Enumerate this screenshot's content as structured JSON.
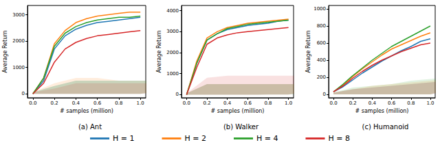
{
  "chart_data": [
    {
      "type": "line",
      "title": "(a) Ant",
      "xlabel": "# samples (million)",
      "ylabel": "Average Return",
      "x": [
        0,
        0.1,
        0.2,
        0.3,
        0.4,
        0.5,
        0.6,
        0.7,
        0.8,
        0.9,
        1.0
      ],
      "xlim": [
        -0.05,
        1.05
      ],
      "xticks": [
        {
          "value": 0,
          "label": "0.0"
        },
        0.2,
        0.4,
        0.6,
        0.8,
        {
          "value": 1,
          "label": "1.0"
        }
      ],
      "ylim": [
        -150,
        3350
      ],
      "yticks": [
        0,
        1000,
        2000,
        3000
      ],
      "legend": "bottom",
      "grid": false,
      "series": [
        {
          "name": "H = 1",
          "color": "#1f77b4",
          "values": [
            0,
            500,
            1700,
            2200,
            2450,
            2600,
            2700,
            2750,
            2800,
            2850,
            2900
          ],
          "std": [
            30,
            150,
            250,
            250,
            250,
            250,
            250,
            250,
            250,
            250,
            250
          ]
        },
        {
          "name": "H = 2",
          "color": "#ff7f0e",
          "values": [
            0,
            600,
            1900,
            2400,
            2700,
            2850,
            2950,
            3000,
            3050,
            3100,
            3100
          ],
          "std": [
            30,
            200,
            300,
            300,
            250,
            250,
            250,
            250,
            250,
            200,
            200
          ]
        },
        {
          "name": "H = 4",
          "color": "#2ca02c",
          "values": [
            0,
            600,
            1800,
            2300,
            2550,
            2700,
            2800,
            2850,
            2900,
            2900,
            2950
          ],
          "std": [
            30,
            150,
            250,
            250,
            250,
            250,
            250,
            250,
            250,
            250,
            250
          ]
        },
        {
          "name": "H = 8",
          "color": "#d62728",
          "values": [
            0,
            400,
            1200,
            1700,
            1950,
            2100,
            2200,
            2250,
            2300,
            2350,
            2400
          ],
          "std": [
            30,
            100,
            200,
            200,
            200,
            200,
            200,
            200,
            200,
            200,
            200
          ]
        }
      ]
    },
    {
      "type": "line",
      "title": "(b) Walker",
      "xlabel": "# samples (million)",
      "ylabel": "Average Return",
      "x": [
        0,
        0.1,
        0.2,
        0.3,
        0.4,
        0.5,
        0.6,
        0.7,
        0.8,
        0.9,
        1.0
      ],
      "xlim": [
        -0.05,
        1.05
      ],
      "xticks": [
        {
          "value": 0,
          "label": "0.0"
        },
        0.2,
        0.4,
        0.6,
        0.8,
        {
          "value": 1,
          "label": "1.0"
        }
      ],
      "ylim": [
        -150,
        4250
      ],
      "yticks": [
        0,
        1000,
        2000,
        3000,
        4000
      ],
      "legend": "bottom",
      "grid": false,
      "series": [
        {
          "name": "H = 1",
          "color": "#1f77b4",
          "values": [
            0,
            1500,
            2600,
            2900,
            3100,
            3200,
            3300,
            3350,
            3400,
            3500,
            3550
          ],
          "std": [
            30,
            250,
            250,
            250,
            250,
            250,
            250,
            250,
            250,
            250,
            250
          ]
        },
        {
          "name": "H = 2",
          "color": "#ff7f0e",
          "values": [
            0,
            1600,
            2700,
            3000,
            3200,
            3300,
            3400,
            3450,
            3500,
            3550,
            3600
          ],
          "std": [
            30,
            250,
            250,
            250,
            250,
            250,
            250,
            250,
            250,
            250,
            250
          ]
        },
        {
          "name": "H = 4",
          "color": "#2ca02c",
          "values": [
            0,
            1500,
            2600,
            2900,
            3150,
            3250,
            3350,
            3400,
            3450,
            3500,
            3550
          ],
          "std": [
            30,
            250,
            250,
            250,
            250,
            250,
            250,
            250,
            250,
            250,
            250
          ]
        },
        {
          "name": "H = 8",
          "color": "#d62728",
          "values": [
            0,
            1300,
            2400,
            2700,
            2850,
            2950,
            3000,
            3050,
            3100,
            3150,
            3200
          ],
          "std": [
            30,
            400,
            450,
            450,
            450,
            450,
            450,
            450,
            450,
            450,
            450
          ]
        }
      ]
    },
    {
      "type": "line",
      "title": "(c) Humanoid",
      "xlabel": "# samples (million)",
      "ylabel": "Average Return",
      "x": [
        0,
        0.1,
        0.2,
        0.3,
        0.4,
        0.5,
        0.6,
        0.7,
        0.8,
        0.9,
        1.0
      ],
      "xlim": [
        -0.05,
        1.05
      ],
      "xticks": [
        {
          "value": 0,
          "label": "0.0"
        },
        0.2,
        0.4,
        0.6,
        0.8,
        {
          "value": 1,
          "label": "1.0"
        }
      ],
      "ylim": [
        -40,
        1040
      ],
      "yticks": [
        0,
        200,
        400,
        600,
        800,
        1000
      ],
      "legend": "bottom",
      "grid": false,
      "series": [
        {
          "name": "H = 1",
          "color": "#1f77b4",
          "values": [
            30,
            90,
            170,
            250,
            320,
            390,
            450,
            510,
            560,
            620,
            650
          ],
          "std": [
            10,
            30,
            40,
            50,
            60,
            70,
            80,
            90,
            90,
            100,
            100
          ]
        },
        {
          "name": "H = 2",
          "color": "#ff7f0e",
          "values": [
            30,
            110,
            210,
            300,
            380,
            460,
            530,
            580,
            630,
            680,
            720
          ],
          "std": [
            10,
            30,
            50,
            60,
            70,
            80,
            90,
            100,
            110,
            120,
            120
          ]
        },
        {
          "name": "H = 4",
          "color": "#2ca02c",
          "values": [
            30,
            120,
            220,
            310,
            400,
            480,
            560,
            620,
            680,
            740,
            800
          ],
          "std": [
            10,
            40,
            50,
            60,
            80,
            90,
            100,
            120,
            130,
            140,
            150
          ]
        },
        {
          "name": "H = 8",
          "color": "#d62728",
          "values": [
            30,
            100,
            190,
            270,
            340,
            400,
            450,
            500,
            540,
            580,
            600
          ],
          "std": [
            10,
            30,
            40,
            50,
            60,
            70,
            80,
            90,
            100,
            110,
            120
          ]
        }
      ]
    }
  ]
}
